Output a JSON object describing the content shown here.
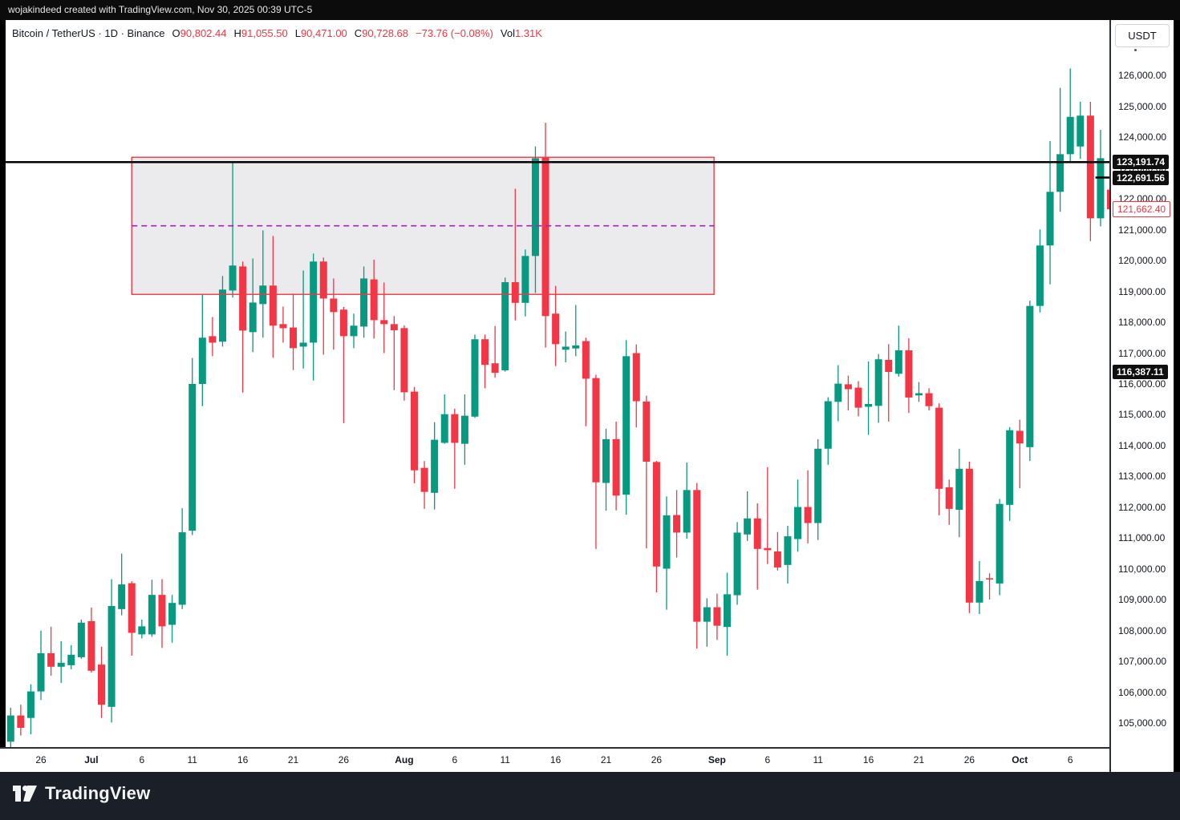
{
  "topbar": {
    "attribution": "wojakindeed created with TradingView.com, Nov 30, 2025 00:39 UTC-5"
  },
  "legend": {
    "symbol": "Bitcoin / TetherUS · 1D · Binance",
    "o_label": "O",
    "o": "90,802.44",
    "h_label": "H",
    "h": "91,055.50",
    "l_label": "L",
    "l": "90,471.00",
    "c_label": "C",
    "c": "90,728.68",
    "change": "−73.76 (−0.08%)",
    "vol_label": "Vol",
    "vol": "1.31K"
  },
  "axis": {
    "currency_button": "USDT"
  },
  "footer": {
    "brand": "TradingView"
  },
  "chart_data": {
    "type": "candlestick",
    "title": "Bitcoin / TetherUS 1D Binance",
    "ylabel": "price (USDT)",
    "ylim": [
      104200,
      127800
    ],
    "grid": false,
    "colors": {
      "up": "#089981",
      "down": "#f23645",
      "line": "#000000"
    },
    "price_ticks": [
      126000,
      125000,
      124000,
      123000,
      122000,
      121000,
      120000,
      119000,
      118000,
      117000,
      116000,
      115000,
      114000,
      113000,
      112000,
      111000,
      110000,
      109000,
      108000,
      107000,
      106000,
      105000
    ],
    "price_ticks_hidden_by_labels": [
      123000
    ],
    "time_ticks": [
      {
        "label": "26",
        "index": 3
      },
      {
        "label": "Jul",
        "index": 8,
        "month": true
      },
      {
        "label": "6",
        "index": 13
      },
      {
        "label": "11",
        "index": 18
      },
      {
        "label": "16",
        "index": 23
      },
      {
        "label": "21",
        "index": 28
      },
      {
        "label": "26",
        "index": 33
      },
      {
        "label": "Aug",
        "index": 39,
        "month": true
      },
      {
        "label": "6",
        "index": 44
      },
      {
        "label": "11",
        "index": 49
      },
      {
        "label": "16",
        "index": 54
      },
      {
        "label": "21",
        "index": 59
      },
      {
        "label": "26",
        "index": 64
      },
      {
        "label": "Sep",
        "index": 70,
        "month": true
      },
      {
        "label": "6",
        "index": 75
      },
      {
        "label": "11",
        "index": 80
      },
      {
        "label": "16",
        "index": 85
      },
      {
        "label": "21",
        "index": 90
      },
      {
        "label": "26",
        "index": 95
      },
      {
        "label": "Oct",
        "index": 100,
        "month": true
      },
      {
        "label": "6",
        "index": 105
      }
    ],
    "candles_format": "[open, high, low, close] USDT, daily, late June to early October",
    "candles": [
      [
        104400,
        105500,
        104050,
        105250
      ],
      [
        105250,
        105600,
        104600,
        104850
      ],
      [
        105170,
        106260,
        104640,
        106030
      ],
      [
        106030,
        108000,
        105750,
        107270
      ],
      [
        107270,
        108130,
        106540,
        106830
      ],
      [
        106830,
        107660,
        106310,
        106960
      ],
      [
        106880,
        107530,
        106750,
        107220
      ],
      [
        107140,
        108360,
        107090,
        108260
      ],
      [
        108310,
        108750,
        106640,
        106700
      ],
      [
        106900,
        107480,
        105170,
        105600
      ],
      [
        105530,
        109670,
        105020,
        108800
      ],
      [
        108700,
        110500,
        108500,
        109500
      ],
      [
        109540,
        109600,
        107190,
        107930
      ],
      [
        107880,
        108360,
        107750,
        108140
      ],
      [
        107880,
        109650,
        107800,
        109160
      ],
      [
        109160,
        109670,
        107440,
        108140
      ],
      [
        108190,
        109160,
        107610,
        108900
      ],
      [
        108840,
        111970,
        108700,
        111190
      ],
      [
        111240,
        116840,
        111100,
        116000
      ],
      [
        116000,
        118900,
        115280,
        117500
      ],
      [
        117550,
        118170,
        116900,
        117340
      ],
      [
        117370,
        119500,
        117210,
        119060
      ],
      [
        119030,
        123200,
        118800,
        119840
      ],
      [
        119810,
        119970,
        115720,
        117730
      ],
      [
        117680,
        120070,
        117030,
        118640
      ],
      [
        118590,
        120980,
        117500,
        119190
      ],
      [
        119190,
        120800,
        116850,
        117890
      ],
      [
        117940,
        118510,
        117340,
        117810
      ],
      [
        117830,
        118930,
        116450,
        117160
      ],
      [
        117210,
        119680,
        116500,
        117340
      ],
      [
        117340,
        120230,
        116110,
        119970
      ],
      [
        119970,
        120100,
        116950,
        118770
      ],
      [
        118770,
        119420,
        117110,
        118330
      ],
      [
        118410,
        118500,
        114730,
        117550
      ],
      [
        117550,
        118280,
        117160,
        117890
      ],
      [
        117860,
        119810,
        117500,
        119420
      ],
      [
        119390,
        120030,
        117470,
        118070
      ],
      [
        118070,
        119290,
        117000,
        117940
      ],
      [
        117940,
        118200,
        115800,
        117740
      ],
      [
        117810,
        117900,
        115460,
        115730
      ],
      [
        115750,
        115900,
        112780,
        113200
      ],
      [
        113280,
        113500,
        111950,
        112500
      ],
      [
        112470,
        114760,
        111930,
        114190
      ],
      [
        114090,
        115660,
        114060,
        115020
      ],
      [
        115020,
        115200,
        112600,
        114090
      ],
      [
        114060,
        115660,
        113380,
        114970
      ],
      [
        114940,
        117600,
        114900,
        117450
      ],
      [
        117450,
        117600,
        115860,
        116620
      ],
      [
        116670,
        117880,
        116200,
        116360
      ],
      [
        116440,
        119450,
        116400,
        119300
      ],
      [
        119300,
        122330,
        118060,
        118630
      ],
      [
        118630,
        120360,
        118190,
        120150
      ],
      [
        120150,
        123700,
        118950,
        123320
      ],
      [
        123350,
        124470,
        117180,
        118200
      ],
      [
        118280,
        119180,
        116580,
        117290
      ],
      [
        117110,
        117700,
        116700,
        117210
      ],
      [
        117150,
        118560,
        116900,
        117250
      ],
      [
        117390,
        117500,
        114630,
        116170
      ],
      [
        116190,
        116300,
        110650,
        112810
      ],
      [
        112790,
        114550,
        111890,
        114210
      ],
      [
        114210,
        114780,
        111900,
        112380
      ],
      [
        112410,
        117420,
        111760,
        116900
      ],
      [
        117000,
        117280,
        114590,
        115440
      ],
      [
        115430,
        115620,
        110670,
        113480
      ],
      [
        113470,
        113500,
        109240,
        110080
      ],
      [
        110010,
        112350,
        108680,
        111740
      ],
      [
        111750,
        112560,
        110370,
        111180
      ],
      [
        111180,
        113450,
        110980,
        112560
      ],
      [
        112560,
        112790,
        107420,
        108290
      ],
      [
        108290,
        109050,
        107480,
        108760
      ],
      [
        108760,
        109200,
        107700,
        108160
      ],
      [
        108120,
        109880,
        107190,
        109180
      ],
      [
        109150,
        111520,
        108840,
        111180
      ],
      [
        111120,
        112520,
        110910,
        111640
      ],
      [
        111640,
        112130,
        109330,
        110650
      ],
      [
        110680,
        113300,
        110160,
        110610
      ],
      [
        110570,
        111200,
        109950,
        110050
      ],
      [
        110130,
        111400,
        109530,
        111060
      ],
      [
        110970,
        112900,
        110560,
        112010
      ],
      [
        112010,
        113200,
        110830,
        111490
      ],
      [
        111490,
        114210,
        110940,
        113900
      ],
      [
        113900,
        115570,
        113380,
        115440
      ],
      [
        115420,
        116610,
        114790,
        116010
      ],
      [
        115990,
        116270,
        115140,
        115830
      ],
      [
        115880,
        116090,
        114950,
        115230
      ],
      [
        115260,
        116730,
        114350,
        115350
      ],
      [
        115290,
        116970,
        114740,
        116800
      ],
      [
        116780,
        117290,
        114780,
        116390
      ],
      [
        116330,
        117890,
        116240,
        117090
      ],
      [
        117090,
        117480,
        115060,
        115560
      ],
      [
        115630,
        116060,
        115420,
        115700
      ],
      [
        115700,
        115860,
        115140,
        115280
      ],
      [
        115230,
        115370,
        111740,
        112600
      ],
      [
        112650,
        112900,
        111430,
        111950
      ],
      [
        111920,
        113900,
        111030,
        113250
      ],
      [
        113250,
        113480,
        108570,
        108910
      ],
      [
        108910,
        110260,
        108540,
        109610
      ],
      [
        109700,
        109860,
        109010,
        109660
      ],
      [
        109530,
        112270,
        109150,
        112110
      ],
      [
        112080,
        114600,
        111560,
        114500
      ],
      [
        114480,
        114840,
        112620,
        114070
      ],
      [
        113950,
        118700,
        113500,
        118530
      ],
      [
        118530,
        121010,
        118320,
        120490
      ],
      [
        120490,
        123880,
        119230,
        122230
      ],
      [
        122230,
        125600,
        121580,
        123450
      ],
      [
        123450,
        126230,
        123180,
        124660
      ],
      [
        123700,
        125150,
        123300,
        124700
      ],
      [
        124700,
        125150,
        120630,
        121370
      ],
      [
        121370,
        124240,
        121110,
        123320
      ],
      [
        122300,
        122900,
        120750,
        121662.4
      ]
    ],
    "annotations": {
      "horizontal_line": {
        "price": 123191.74,
        "color": "#000000",
        "width": 2.5
      },
      "horizontal_line_stub": {
        "price": 122691.56,
        "color": "#000000",
        "width": 2.5,
        "start_slot": 108
      },
      "box": {
        "start_slot": 12.5,
        "end_slot": 70.2,
        "top": 123350,
        "bottom": 118905,
        "fill": "rgba(130,133,143,0.16)",
        "border": "#f23645",
        "median_dashed": true,
        "median_color": "#9c27b0"
      },
      "axis_labels_black": [
        {
          "text": "123,191.74",
          "price": 123191.74
        },
        {
          "text": "122,691.56",
          "price": 122691.56
        },
        {
          "text": "116,387.11",
          "price": 116387.11
        }
      ],
      "axis_label_outlined": {
        "text": "121,662.40",
        "price": 121662.4
      }
    }
  }
}
